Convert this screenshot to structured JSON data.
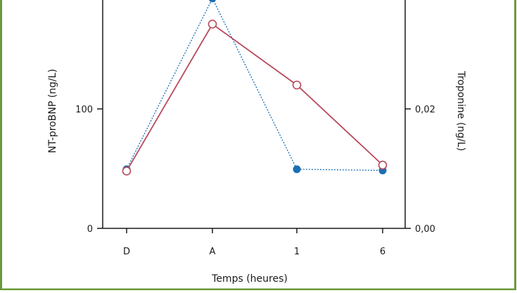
{
  "chart_data": {
    "type": "line",
    "categories": [
      "D",
      "A",
      "1",
      "6"
    ],
    "xlabel": "Temps (heures)",
    "ylabel_left": "NT-proBNP (ng/L)",
    "ylabel_right": "Troponine (ng/L)",
    "left_axis": {
      "ylim": [
        0,
        200
      ],
      "ticks": [
        0,
        100
      ],
      "tick_labels": [
        "0",
        "100"
      ]
    },
    "right_axis": {
      "ylim": [
        0,
        0.04
      ],
      "ticks": [
        0,
        0.02
      ],
      "tick_labels": [
        "0,00",
        "0,02"
      ]
    },
    "series": [
      {
        "axis": "left",
        "style": "solid-line-open-circle",
        "color": "#b84a5c",
        "values": [
          48,
          171,
          120,
          53
        ]
      },
      {
        "axis": "right",
        "style": "dotted-line-filled-circle",
        "color": "#1b6fb3",
        "values": [
          0.0099,
          0.0385,
          0.0099,
          0.0097
        ]
      }
    ],
    "grid": false,
    "frame_color": "#6a9a3a"
  }
}
